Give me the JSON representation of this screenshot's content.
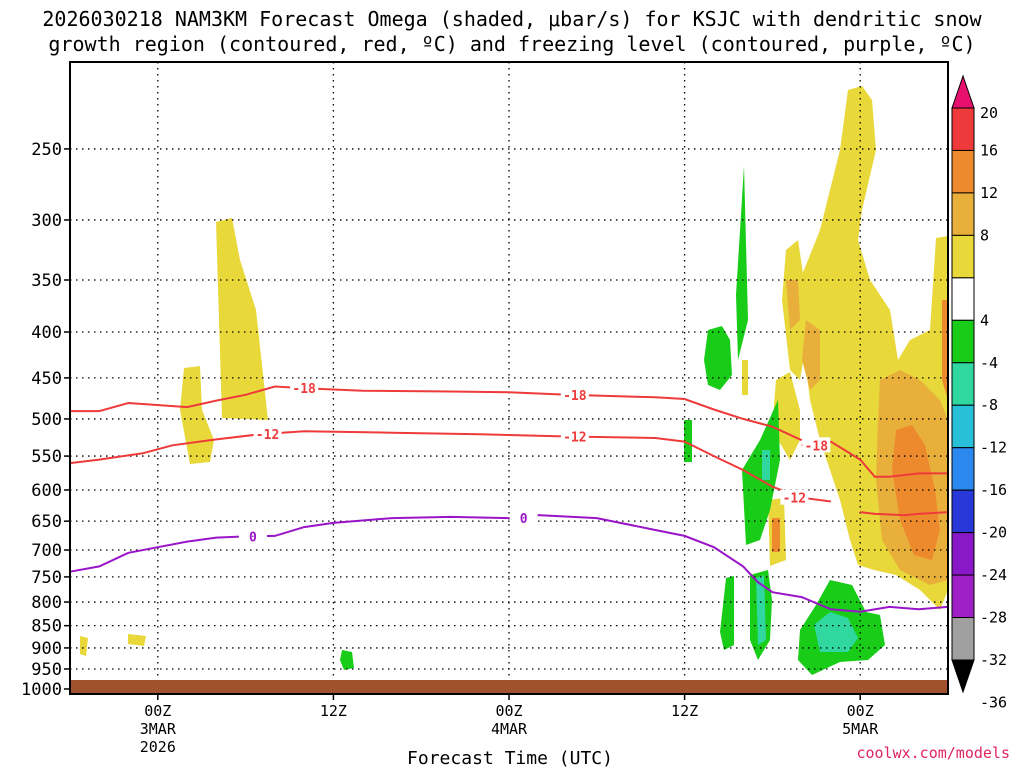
{
  "chart_data": {
    "type": "time-height cross section",
    "title_line1": "2026030218 NAM3KM Forecast Omega (shaded, μbar/s) for KSJC with dendritic snow",
    "title_line2": "growth region (contoured, red, ºC) and freezing level (contoured, purple, ºC)",
    "xlabel": "Forecast Time (UTC)",
    "watermark": "coolwx.com/models",
    "y_ticks": [
      250,
      300,
      350,
      400,
      450,
      500,
      550,
      600,
      650,
      700,
      750,
      800,
      850,
      900,
      950,
      1000
    ],
    "x_ticks": [
      {
        "hour": 6,
        "label": "00Z",
        "date": "3MAR",
        "year": "2026"
      },
      {
        "hour": 18,
        "label": "12Z",
        "date": "",
        "year": ""
      },
      {
        "hour": 30,
        "label": "00Z",
        "date": "4MAR",
        "year": ""
      },
      {
        "hour": 42,
        "label": "12Z",
        "date": "",
        "year": ""
      },
      {
        "hour": 54,
        "label": "00Z",
        "date": "5MAR",
        "year": ""
      }
    ],
    "x_range_hours": [
      0,
      60
    ],
    "y_range_hpa": [
      200,
      1013
    ],
    "colorbar": {
      "labels": [
        "20",
        "16",
        "12",
        "8",
        "4",
        "-4",
        "-8",
        "-12",
        "-16",
        "-20",
        "-24",
        "-28",
        "-32",
        "-36"
      ],
      "colors": [
        "#e8106e",
        "#ee3a3a",
        "#ee8a2e",
        "#e8b03a",
        "#e8d83a",
        "#ffffff",
        "#18cc18",
        "#30d8a0",
        "#28c0d8",
        "#2a88ee",
        "#2838d8",
        "#8818c8",
        "#a020c8",
        "#a0a0a0",
        "#000000"
      ]
    },
    "contours": [
      {
        "label": "-18",
        "color": "#ee3a3a",
        "points": [
          [
            0,
            490
          ],
          [
            2,
            490
          ],
          [
            4,
            480
          ],
          [
            8,
            485
          ],
          [
            10,
            477
          ],
          [
            12,
            470
          ],
          [
            14,
            460
          ],
          [
            16,
            462
          ],
          [
            20,
            465
          ],
          [
            26,
            466
          ],
          [
            30,
            467
          ],
          [
            34,
            470
          ],
          [
            40,
            473
          ],
          [
            42,
            475
          ],
          [
            44,
            488
          ],
          [
            46,
            500
          ],
          [
            48,
            510
          ],
          [
            50,
            528
          ]
        ]
      },
      {
        "label": "-12",
        "color": "#ee3a3a",
        "points": [
          [
            0,
            560
          ],
          [
            2,
            555
          ],
          [
            5,
            546
          ],
          [
            7,
            535
          ],
          [
            10,
            527
          ],
          [
            13,
            520
          ],
          [
            16,
            516
          ],
          [
            22,
            518
          ],
          [
            28,
            520
          ],
          [
            34,
            523
          ],
          [
            40,
            525
          ],
          [
            42,
            530
          ],
          [
            44,
            550
          ],
          [
            46,
            570
          ],
          [
            48,
            595
          ],
          [
            50,
            612
          ],
          [
            52,
            618
          ]
        ]
      },
      {
        "label": "-18",
        "color": "#ee3a3a",
        "points": [
          [
            50,
            535
          ],
          [
            52,
            530
          ],
          [
            54,
            555
          ],
          [
            55,
            580
          ],
          [
            56,
            580
          ],
          [
            58,
            575
          ],
          [
            60,
            575
          ]
        ]
      },
      {
        "label": "-12",
        "color": "#ee3a3a",
        "points": [
          [
            54,
            635
          ],
          [
            55,
            638
          ],
          [
            57,
            640
          ],
          [
            58,
            638
          ],
          [
            60,
            635
          ]
        ]
      },
      {
        "label": "0",
        "color": "#9a14c8",
        "points": [
          [
            0,
            740
          ],
          [
            2,
            730
          ],
          [
            4,
            705
          ],
          [
            6,
            695
          ],
          [
            8,
            685
          ],
          [
            10,
            678
          ],
          [
            12,
            676
          ],
          [
            14,
            675
          ],
          [
            16,
            660
          ],
          [
            18,
            653
          ],
          [
            22,
            645
          ],
          [
            26,
            643
          ],
          [
            30,
            645
          ],
          [
            32,
            640
          ],
          [
            36,
            645
          ],
          [
            40,
            665
          ],
          [
            42,
            675
          ],
          [
            44,
            695
          ],
          [
            46,
            730
          ],
          [
            47,
            760
          ],
          [
            48,
            780
          ],
          [
            50,
            790
          ],
          [
            52,
            815
          ],
          [
            54,
            820
          ],
          [
            56,
            810
          ],
          [
            58,
            815
          ],
          [
            60,
            810
          ]
        ]
      }
    ]
  }
}
